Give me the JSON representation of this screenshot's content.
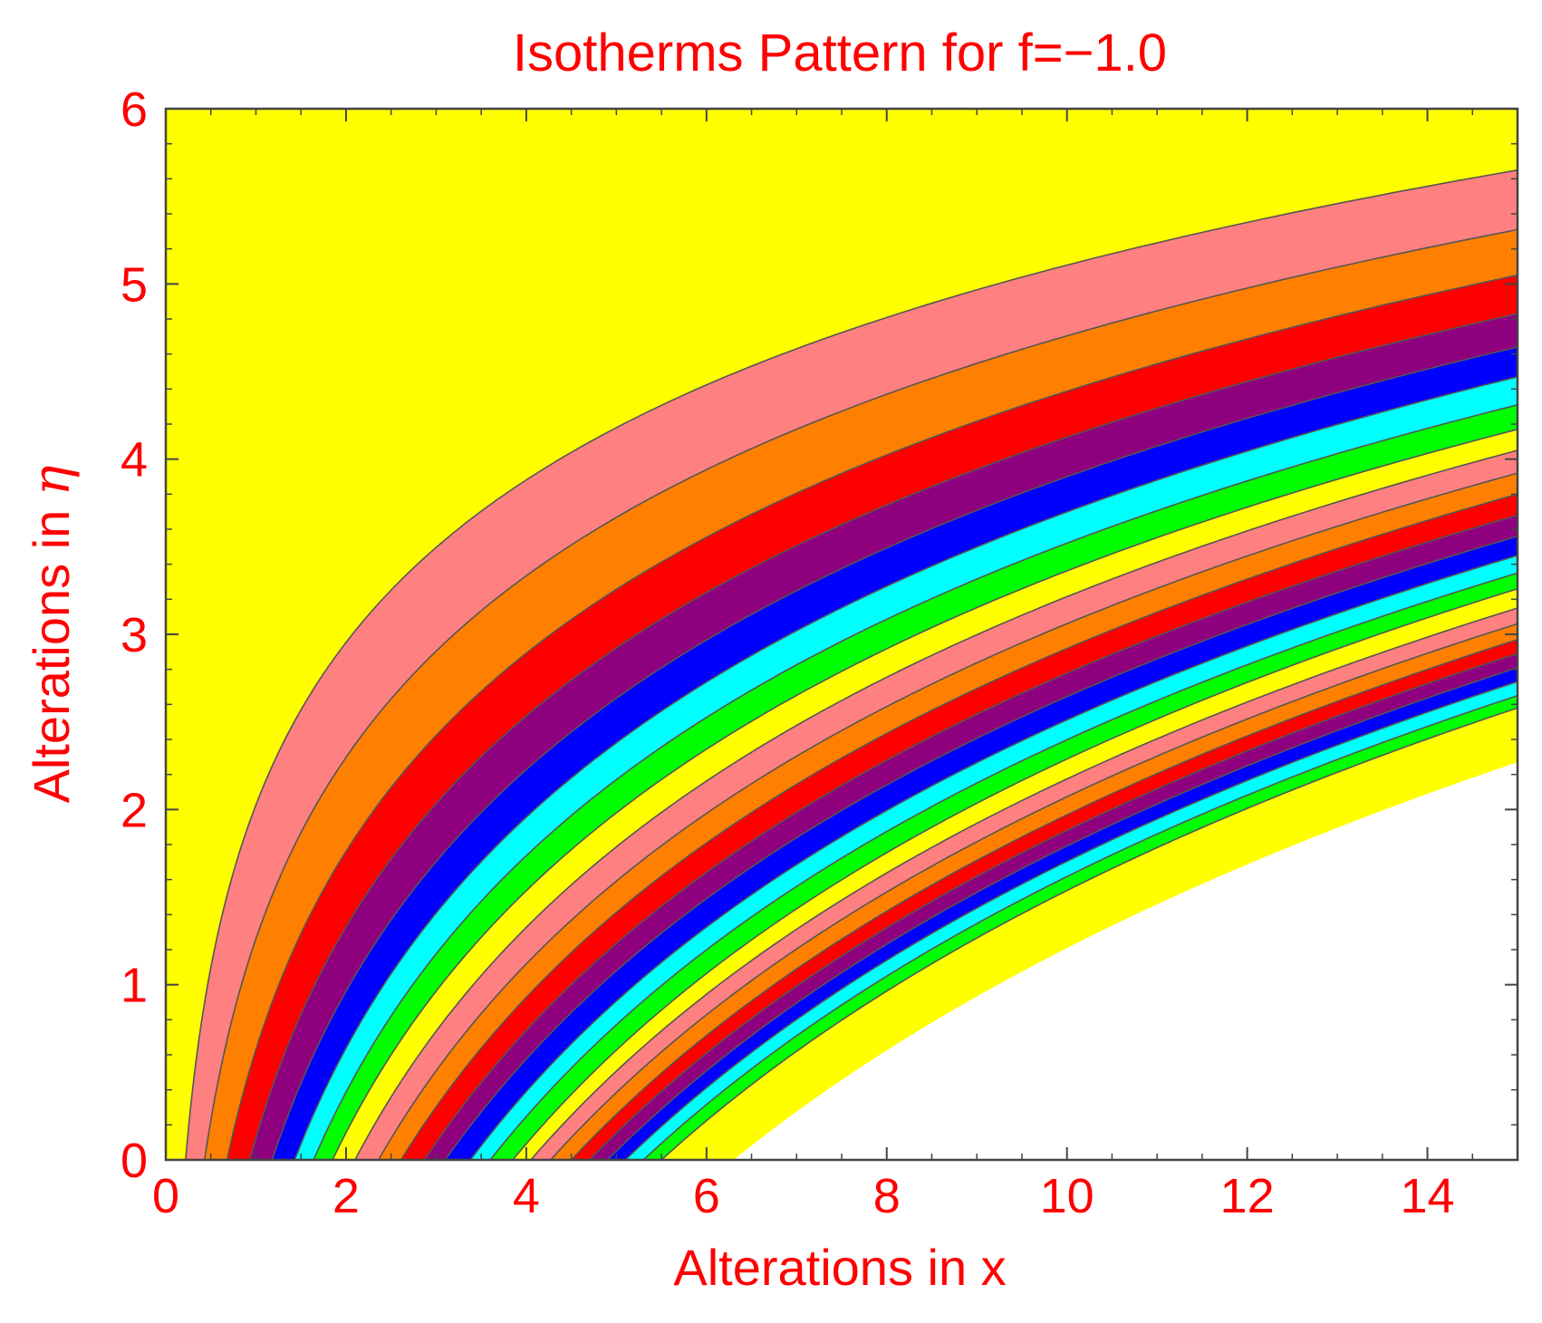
{
  "chart_data": {
    "type": "area",
    "title": "Isotherms Pattern for f=−1.0",
    "xlabel": "Alterations in x",
    "ylabel_text": "Alterations in ",
    "ylabel_symbol": "η",
    "xlim": [
      0,
      15
    ],
    "ylim": [
      0,
      6
    ],
    "x_ticks": [
      {
        "value": 0,
        "label": "0"
      },
      {
        "value": 2,
        "label": "2"
      },
      {
        "value": 4,
        "label": "4"
      },
      {
        "value": 6,
        "label": "6"
      },
      {
        "value": 8,
        "label": "8"
      },
      {
        "value": 10,
        "label": "10"
      },
      {
        "value": 12,
        "label": "12"
      },
      {
        "value": 14,
        "label": "14"
      }
    ],
    "y_ticks": [
      {
        "value": 0,
        "label": "0"
      },
      {
        "value": 1,
        "label": "1"
      },
      {
        "value": 2,
        "label": "2"
      },
      {
        "value": 3,
        "label": "3"
      },
      {
        "value": 4,
        "label": "4"
      },
      {
        "value": 5,
        "label": "5"
      },
      {
        "value": 6,
        "label": "6"
      }
    ],
    "grid": false,
    "background_color": "#ffff00",
    "below_last_contour_color": "#ffffff",
    "contour_line_color": "#555555",
    "text_color": "#ff0000",
    "contours": [
      {
        "x0": 0.22,
        "y15": 5.65
      },
      {
        "x0": 0.43,
        "y15": 5.31
      },
      {
        "x0": 0.68,
        "y15": 5.05
      },
      {
        "x0": 0.93,
        "y15": 4.83
      },
      {
        "x0": 1.18,
        "y15": 4.64
      },
      {
        "x0": 1.43,
        "y15": 4.47
      },
      {
        "x0": 1.64,
        "y15": 4.31
      },
      {
        "x0": 1.85,
        "y15": 4.17
      },
      {
        "x0": 2.1,
        "y15": 4.05
      },
      {
        "x0": 2.36,
        "y15": 3.92
      },
      {
        "x0": 2.61,
        "y15": 3.8
      },
      {
        "x0": 2.87,
        "y15": 3.68
      },
      {
        "x0": 3.1,
        "y15": 3.56
      },
      {
        "x0": 3.38,
        "y15": 3.45
      },
      {
        "x0": 3.6,
        "y15": 3.35
      },
      {
        "x0": 3.85,
        "y15": 3.26
      },
      {
        "x0": 4.05,
        "y15": 3.15
      },
      {
        "x0": 4.27,
        "y15": 3.06
      },
      {
        "x0": 4.5,
        "y15": 2.97
      },
      {
        "x0": 4.7,
        "y15": 2.89
      },
      {
        "x0": 4.9,
        "y15": 2.81
      },
      {
        "x0": 5.1,
        "y15": 2.73
      },
      {
        "x0": 5.3,
        "y15": 2.65
      },
      {
        "x0": 5.5,
        "y15": 2.58
      },
      {
        "x0": 6.3,
        "y15": 2.27
      }
    ],
    "bands": [
      {
        "color": "#ff8080"
      },
      {
        "color": "#ff8000"
      },
      {
        "color": "#ff0000"
      },
      {
        "color": "#8f007f"
      },
      {
        "color": "#0000ff"
      },
      {
        "color": "#00ffff"
      },
      {
        "color": "#00ff00"
      },
      {
        "color": "#ffff00"
      },
      {
        "color": "#ff8080"
      },
      {
        "color": "#ff8000"
      },
      {
        "color": "#ff0000"
      },
      {
        "color": "#8f007f"
      },
      {
        "color": "#0000ff"
      },
      {
        "color": "#00ffff"
      },
      {
        "color": "#00ff00"
      },
      {
        "color": "#ffff00"
      },
      {
        "color": "#ff8080"
      },
      {
        "color": "#ff8000"
      },
      {
        "color": "#ff0000"
      },
      {
        "color": "#8f007f"
      },
      {
        "color": "#0000ff"
      },
      {
        "color": "#00ffff"
      },
      {
        "color": "#00ff00"
      },
      {
        "color": "#ffff00"
      }
    ]
  }
}
